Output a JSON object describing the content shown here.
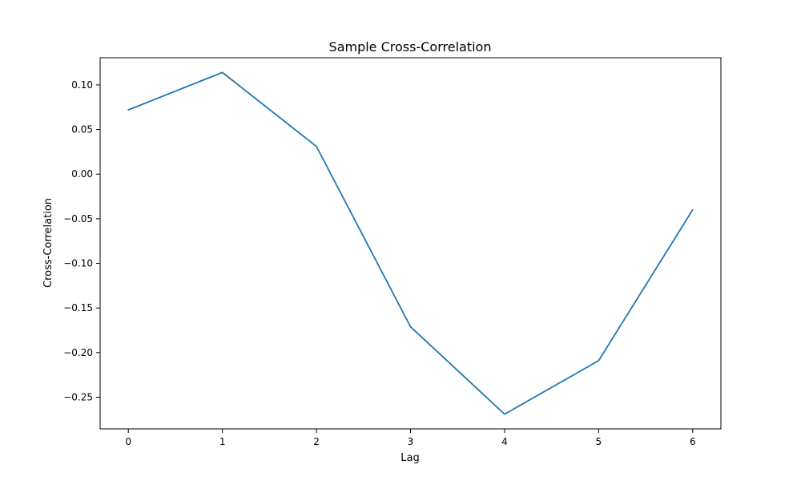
{
  "chart_data": {
    "type": "line",
    "title": "Sample Cross-Correlation",
    "xlabel": "Lag",
    "ylabel": "Cross-Correlation",
    "x": [
      0,
      1,
      2,
      3,
      4,
      5,
      6
    ],
    "series": [
      {
        "values": [
          0.072,
          0.114,
          0.031,
          -0.171,
          -0.269,
          -0.209,
          -0.04
        ],
        "color": "#1f77b4"
      }
    ],
    "xlim": [
      -0.3,
      6.3
    ],
    "ylim": [
      -0.2855,
      0.1305
    ],
    "xticks": [
      0,
      1,
      2,
      3,
      4,
      5,
      6
    ],
    "yticks": [
      0.1,
      0.05,
      0.0,
      -0.05,
      -0.1,
      -0.15,
      -0.2,
      -0.25
    ],
    "ytick_labels": [
      "0.10",
      "0.05",
      "0.00",
      "−0.05",
      "−0.10",
      "−0.15",
      "−0.20",
      "−0.25"
    ],
    "grid": false,
    "legend": "none"
  }
}
